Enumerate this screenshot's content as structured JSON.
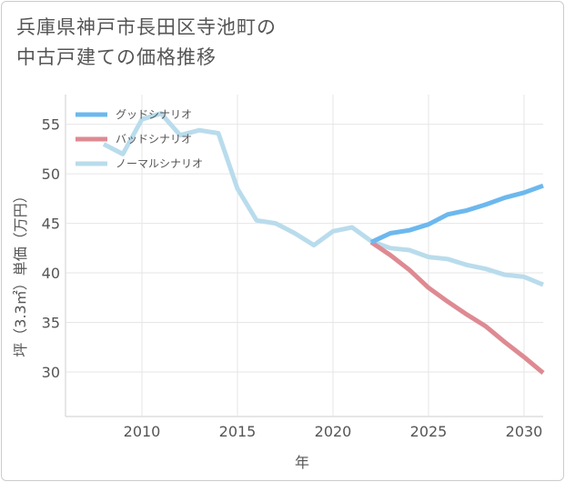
{
  "title_line1": "兵庫県神戸市長田区寺池町の",
  "title_line2": "中古戸建ての価格推移",
  "chart_data": {
    "type": "line",
    "xlabel": "年",
    "ylabel": "坪（3.3㎡）単価（万円）",
    "xlim": [
      2006,
      2031
    ],
    "ylim": [
      25.5,
      58.0
    ],
    "x_ticks": [
      2010,
      2015,
      2020,
      2025,
      2030
    ],
    "y_ticks": [
      30,
      35,
      40,
      45,
      50,
      55
    ],
    "grid": true,
    "legend_position": "top-left",
    "series": [
      {
        "name": "グッドシナリオ",
        "color": "#6cb8ee",
        "points": [
          [
            2022,
            43.1
          ],
          [
            2023,
            44.0
          ],
          [
            2024,
            44.3
          ],
          [
            2025,
            44.9
          ],
          [
            2026,
            45.9
          ],
          [
            2027,
            46.3
          ],
          [
            2028,
            46.9
          ],
          [
            2029,
            47.6
          ],
          [
            2030,
            48.1
          ],
          [
            2031,
            48.8
          ]
        ]
      },
      {
        "name": "バッドシナリオ",
        "color": "#de8a92",
        "points": [
          [
            2022,
            43.1
          ],
          [
            2023,
            41.8
          ],
          [
            2024,
            40.3
          ],
          [
            2025,
            38.5
          ],
          [
            2026,
            37.1
          ],
          [
            2027,
            35.8
          ],
          [
            2028,
            34.6
          ],
          [
            2029,
            33.0
          ],
          [
            2030,
            31.5
          ],
          [
            2031,
            29.9
          ]
        ]
      },
      {
        "name": "ノーマルシナリオ",
        "color": "#b9dcec",
        "points": [
          [
            2008,
            53.0
          ],
          [
            2009,
            52.0
          ],
          [
            2010,
            55.5
          ],
          [
            2011,
            56.1
          ],
          [
            2012,
            53.9
          ],
          [
            2013,
            54.4
          ],
          [
            2014,
            54.1
          ],
          [
            2015,
            48.5
          ],
          [
            2016,
            45.3
          ],
          [
            2017,
            45.0
          ],
          [
            2018,
            44.0
          ],
          [
            2019,
            42.8
          ],
          [
            2020,
            44.2
          ],
          [
            2021,
            44.6
          ],
          [
            2022,
            43.2
          ],
          [
            2023,
            42.5
          ],
          [
            2024,
            42.3
          ],
          [
            2025,
            41.6
          ],
          [
            2026,
            41.4
          ],
          [
            2027,
            40.8
          ],
          [
            2028,
            40.4
          ],
          [
            2029,
            39.8
          ],
          [
            2030,
            39.6
          ],
          [
            2031,
            38.8
          ]
        ]
      }
    ]
  }
}
